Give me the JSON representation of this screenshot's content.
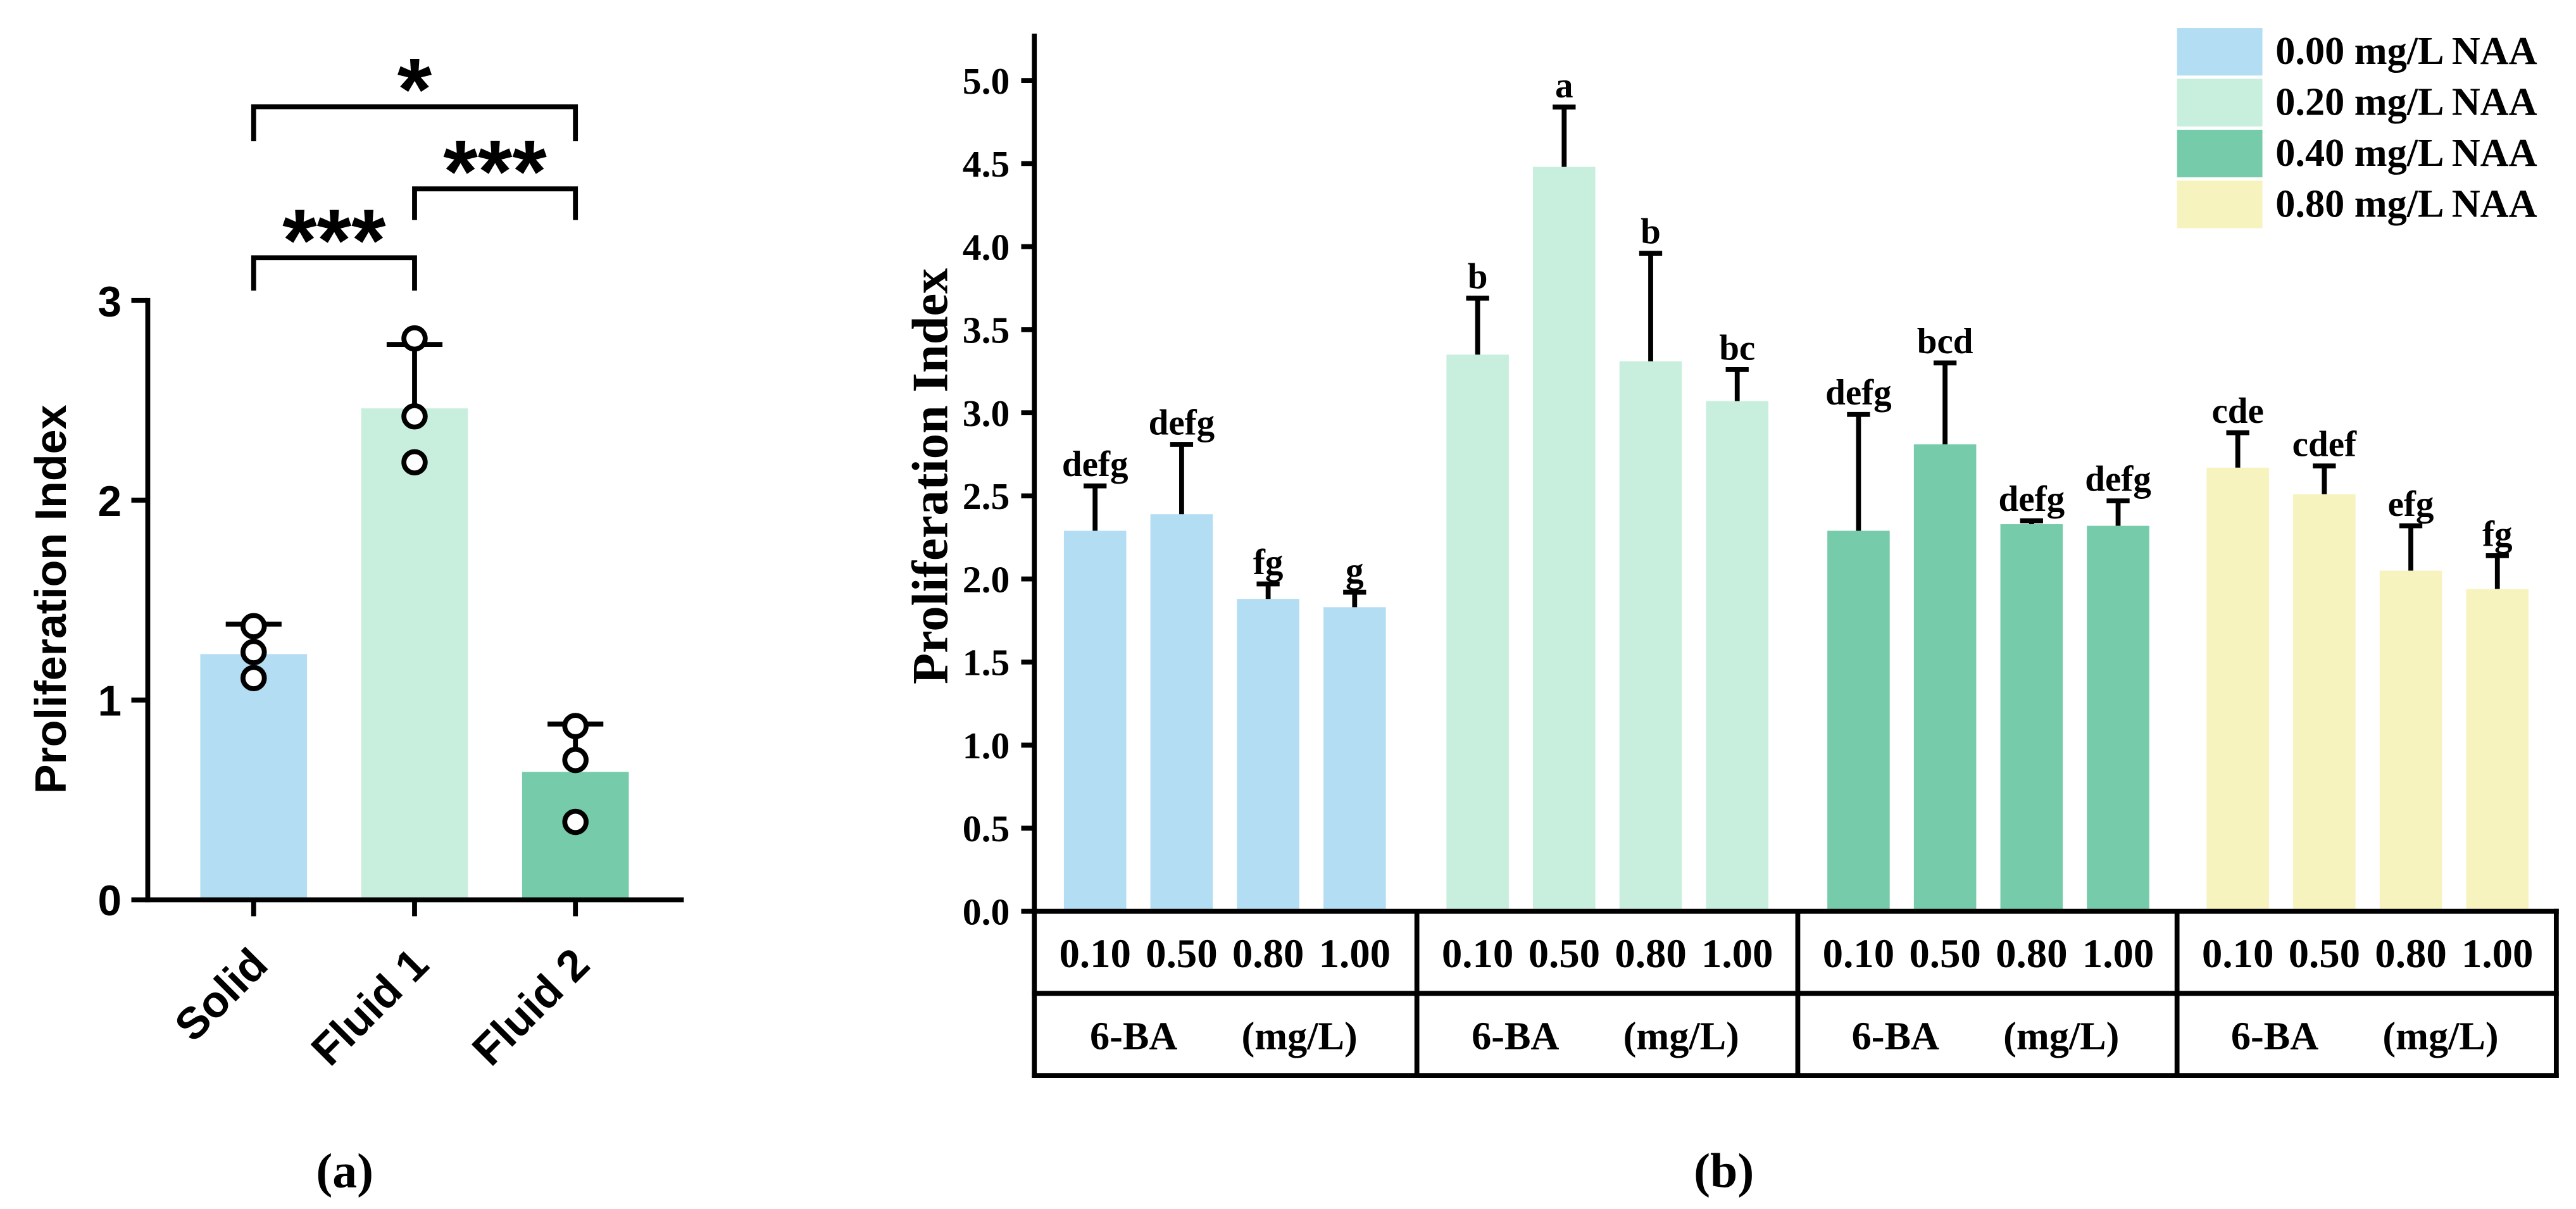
{
  "chart_data": [
    {
      "panel_label": "(a)",
      "type": "bar",
      "grid": false,
      "ylabel": "Proliferation Index",
      "ylim": [
        0,
        3
      ],
      "yticks": [
        "0",
        "1",
        "2",
        "3"
      ],
      "categories": [
        "Solid",
        "Fluid 1",
        "Fluid 2"
      ],
      "values": [
        1.23,
        2.46,
        0.64
      ],
      "error_upper": [
        1.38,
        2.78,
        0.88
      ],
      "points": [
        [
          1.37,
          1.24,
          1.11
        ],
        [
          2.81,
          2.42,
          2.19
        ],
        [
          0.87,
          0.7,
          0.39
        ]
      ],
      "colors": [
        "#b3ddf3",
        "#c8eede",
        "#76ccaa"
      ],
      "significance": [
        {
          "from": 0,
          "to": 1,
          "label": "***"
        },
        {
          "from": 1,
          "to": 2,
          "label": "***"
        },
        {
          "from": 0,
          "to": 2,
          "label": "*"
        }
      ]
    },
    {
      "panel_label": "(b)",
      "type": "bar",
      "grid": false,
      "legend": "top-right",
      "ylabel": "Proliferation Index",
      "ylim": [
        0,
        5.0
      ],
      "yticks": [
        "0.0",
        "0.5",
        "1.0",
        "1.5",
        "2.0",
        "2.5",
        "3.0",
        "3.5",
        "4.0",
        "4.5",
        "5.0"
      ],
      "categories": [
        "0.10",
        "0.50",
        "0.80",
        "1.00"
      ],
      "xlabel": {
        "name": "6-BA",
        "unit": "(mg/L)"
      },
      "series": [
        {
          "name": "0.00 mg/L NAA",
          "color": "#b3ddf3",
          "values": [
            2.29,
            2.39,
            1.88,
            1.83
          ],
          "error_upper": [
            2.56,
            2.81,
            1.97,
            1.92
          ],
          "letters": [
            "defg",
            "defg",
            "fg",
            "g"
          ]
        },
        {
          "name": "0.20 mg/L NAA",
          "color": "#c8eede",
          "values": [
            3.35,
            4.48,
            3.31,
            3.07
          ],
          "error_upper": [
            3.69,
            4.84,
            3.96,
            3.26
          ],
          "letters": [
            "b",
            "a",
            "b",
            "bc"
          ]
        },
        {
          "name": "0.40 mg/L NAA",
          "color": "#76ccaa",
          "values": [
            2.29,
            2.81,
            2.33,
            2.32
          ],
          "error_upper": [
            2.99,
            3.3,
            2.35,
            2.47
          ],
          "letters": [
            "defg",
            "bcd",
            "defg",
            "defg"
          ]
        },
        {
          "name": "0.80 mg/L NAA",
          "color": "#f7f3bf",
          "values": [
            2.67,
            2.51,
            2.05,
            1.94
          ],
          "error_upper": [
            2.88,
            2.68,
            2.32,
            2.14
          ],
          "letters": [
            "cde",
            "cdef",
            "efg",
            "fg"
          ]
        }
      ]
    }
  ]
}
